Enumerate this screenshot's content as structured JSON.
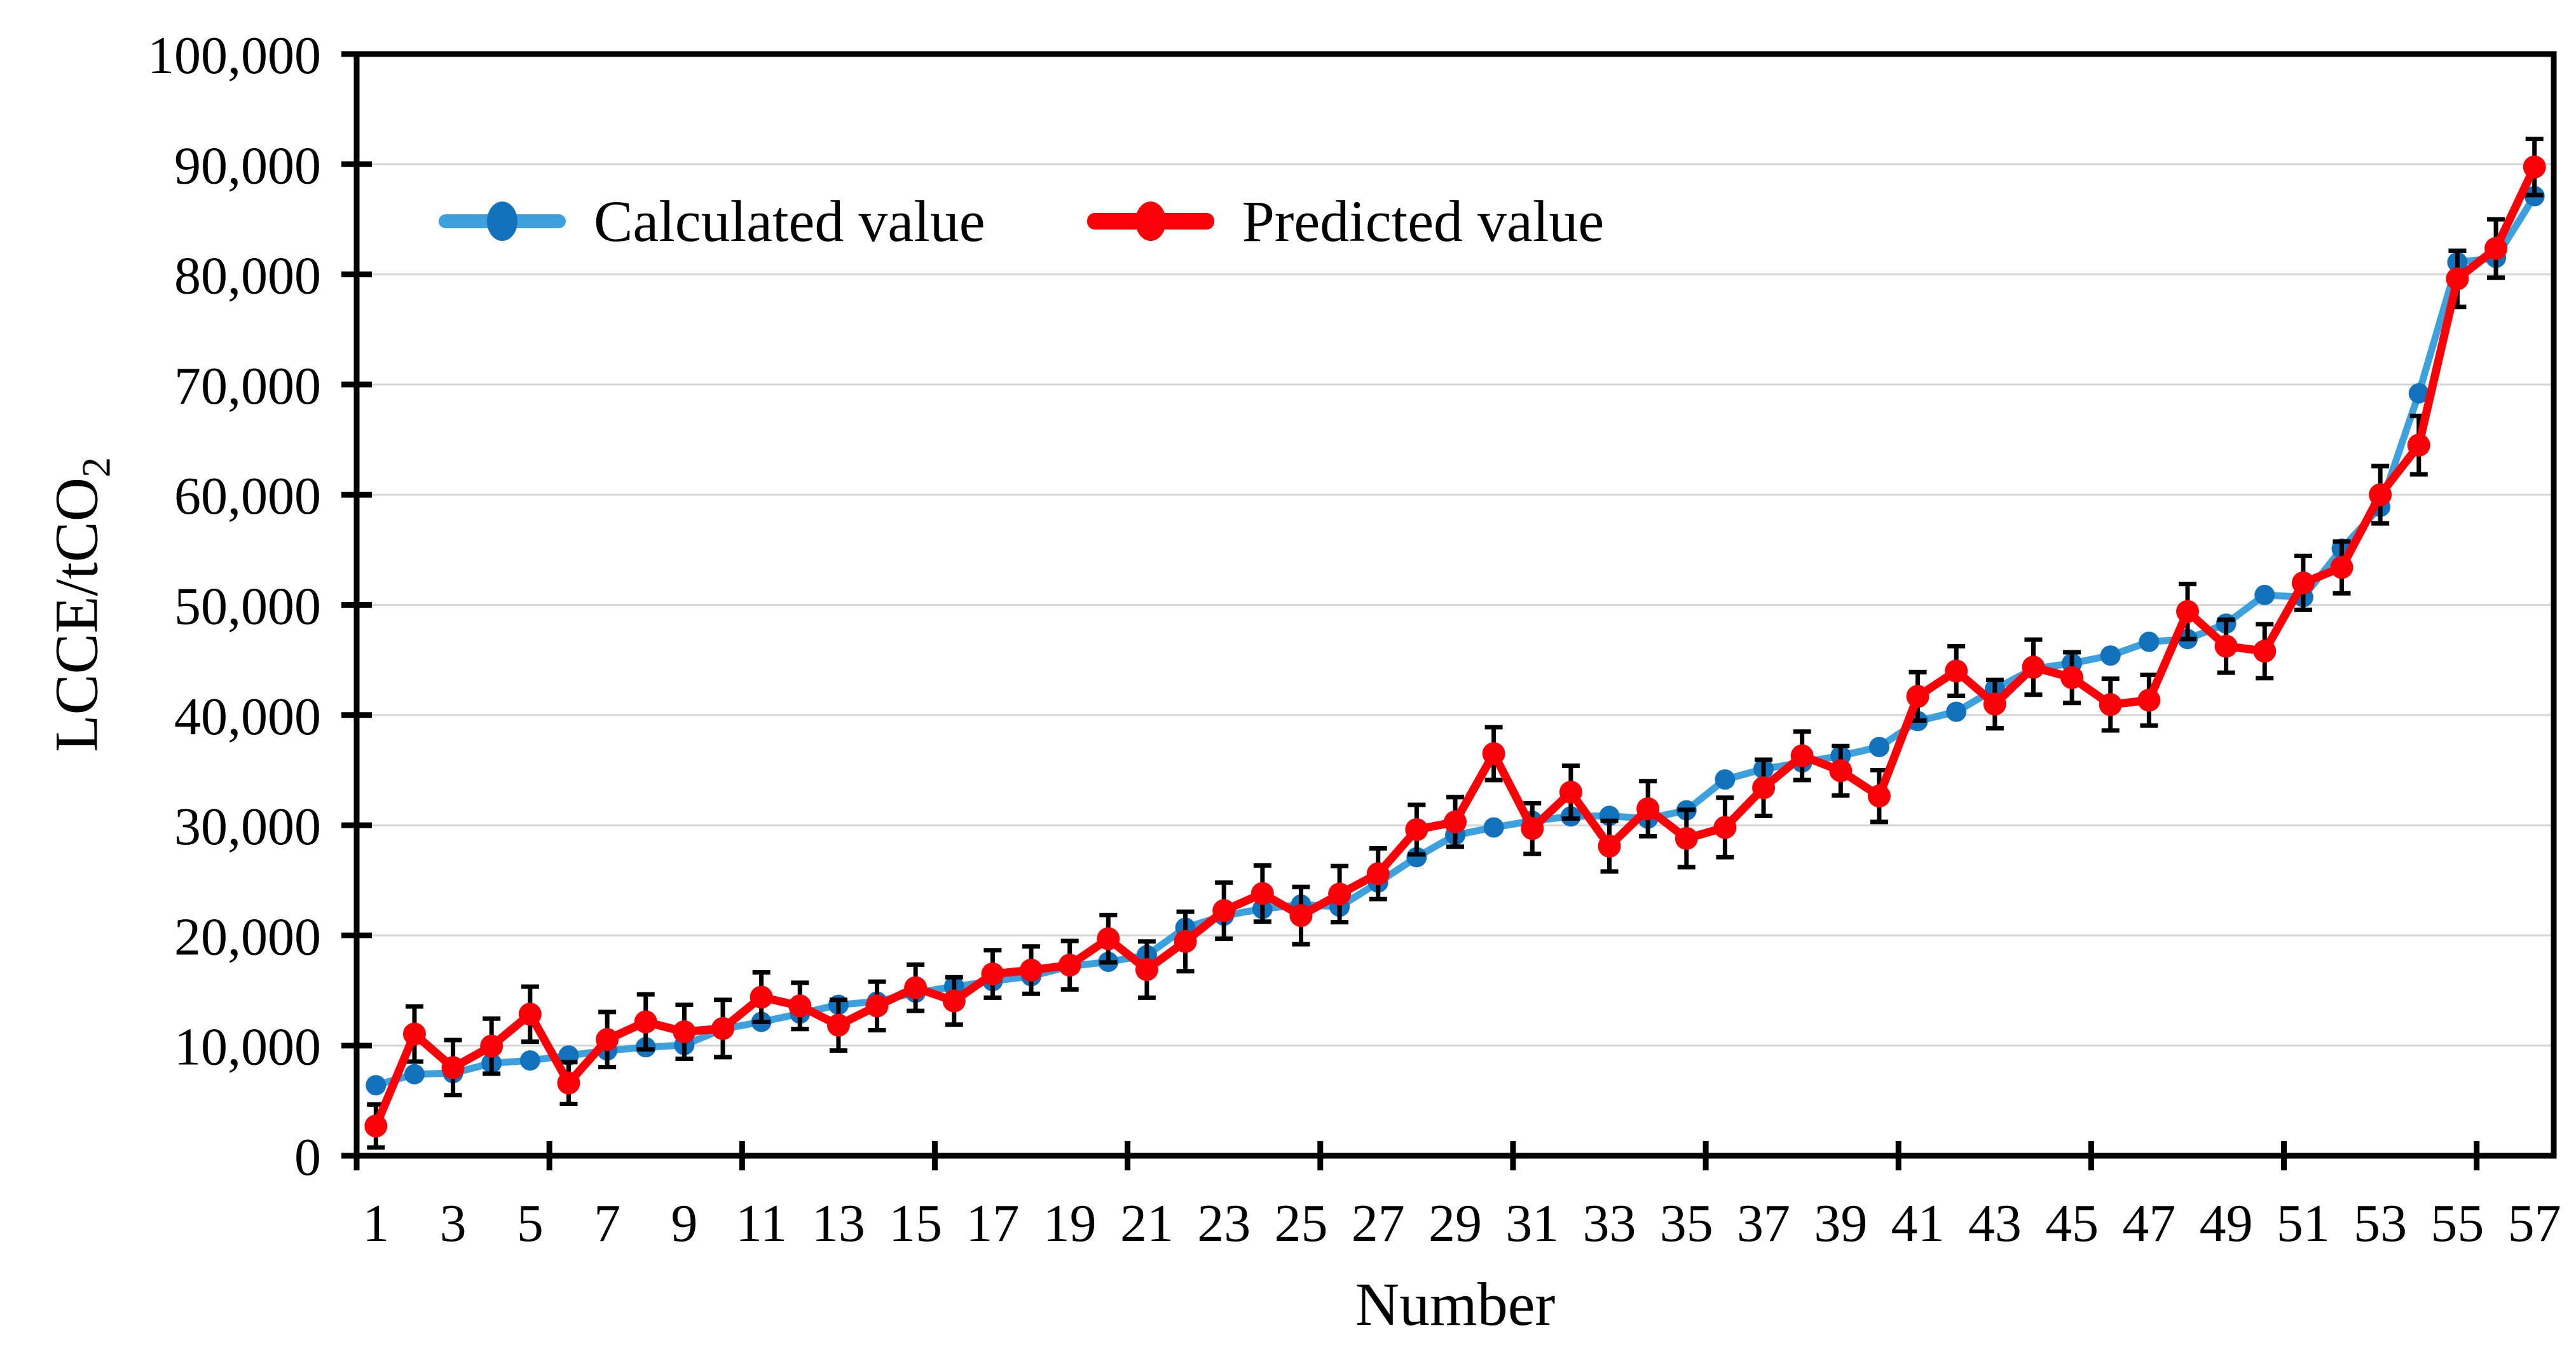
{
  "chart_data": {
    "type": "line",
    "title": "",
    "xlabel": "Number",
    "ylabel": "LCCE/tCO",
    "ylabel_sub": "2",
    "ylim": [
      0,
      100000
    ],
    "ytick_step": 10000,
    "ytick_labels": [
      "0",
      "10,000",
      "20,000",
      "30,000",
      "40,000",
      "50,000",
      "60,000",
      "70,000",
      "80,000",
      "90,000",
      "100,000"
    ],
    "xtick_labels": [
      "1",
      "3",
      "5",
      "7",
      "9",
      "11",
      "13",
      "15",
      "17",
      "19",
      "21",
      "23",
      "25",
      "27",
      "29",
      "31",
      "33",
      "35",
      "37",
      "39",
      "41",
      "43",
      "45",
      "47",
      "49",
      "51",
      "53",
      "55",
      "57"
    ],
    "x": [
      1,
      2,
      3,
      4,
      5,
      6,
      7,
      8,
      9,
      10,
      11,
      12,
      13,
      14,
      15,
      16,
      17,
      18,
      19,
      20,
      21,
      22,
      23,
      24,
      25,
      26,
      27,
      28,
      29,
      30,
      31,
      32,
      33,
      34,
      35,
      36,
      37,
      38,
      39,
      40,
      41,
      42,
      43,
      44,
      45,
      46,
      47,
      48,
      49,
      50,
      51,
      52,
      53,
      54,
      55,
      56,
      57
    ],
    "grid": true,
    "legend_position": "top-left-inside",
    "axis_color": "#000000",
    "grid_color": "#D6D6D6",
    "series": [
      {
        "name": "Calculated value",
        "color_line": "#3CA1DC",
        "color_marker": "#1372BC",
        "values": [
          6400,
          7400,
          7500,
          8400,
          8650,
          9100,
          9550,
          9850,
          10050,
          11500,
          12150,
          12900,
          13700,
          14000,
          14800,
          15350,
          15850,
          16300,
          17200,
          17600,
          18200,
          20700,
          21800,
          22400,
          22800,
          22600,
          24800,
          27100,
          29100,
          29800,
          30400,
          30800,
          30850,
          30600,
          31350,
          34150,
          35100,
          35700,
          36300,
          37100,
          39450,
          40300,
          42350,
          44200,
          44700,
          45400,
          46650,
          46900,
          48300,
          50900,
          50700,
          55100,
          58900,
          69200,
          81100,
          81500,
          87100
        ]
      },
      {
        "name": "Predicted value",
        "color_line": "#FB0006",
        "color_marker": "#FB0006",
        "error_color": "#000000",
        "values": [
          2700,
          11050,
          8000,
          9950,
          12850,
          6600,
          10550,
          12150,
          11250,
          11550,
          14400,
          13600,
          11850,
          13600,
          15250,
          14050,
          16500,
          16850,
          17300,
          19700,
          16900,
          19450,
          22250,
          23800,
          21800,
          23750,
          25600,
          29600,
          30300,
          36500,
          29700,
          33000,
          28100,
          31500,
          28800,
          29800,
          33400,
          36300,
          34950,
          32650,
          41700,
          44000,
          41000,
          44350,
          43400,
          40950,
          41350,
          49400,
          46250,
          45800,
          52000,
          53400,
          60000,
          64500,
          79600,
          82350,
          89750
        ],
        "error": [
          1950,
          2500,
          2500,
          2500,
          2500,
          1900,
          2500,
          2500,
          2450,
          2600,
          2250,
          2100,
          2300,
          2200,
          2100,
          2150,
          2150,
          2150,
          2200,
          2150,
          2550,
          2700,
          2550,
          2550,
          2600,
          2550,
          2300,
          2250,
          2250,
          2400,
          2300,
          2400,
          2300,
          2500,
          2600,
          2700,
          2550,
          2200,
          2250,
          2350,
          2200,
          2250,
          2200,
          2500,
          2300,
          2350,
          2300,
          2500,
          2400,
          2450,
          2450,
          2350,
          2600,
          2650,
          2550,
          2650,
          2550
        ]
      }
    ]
  }
}
